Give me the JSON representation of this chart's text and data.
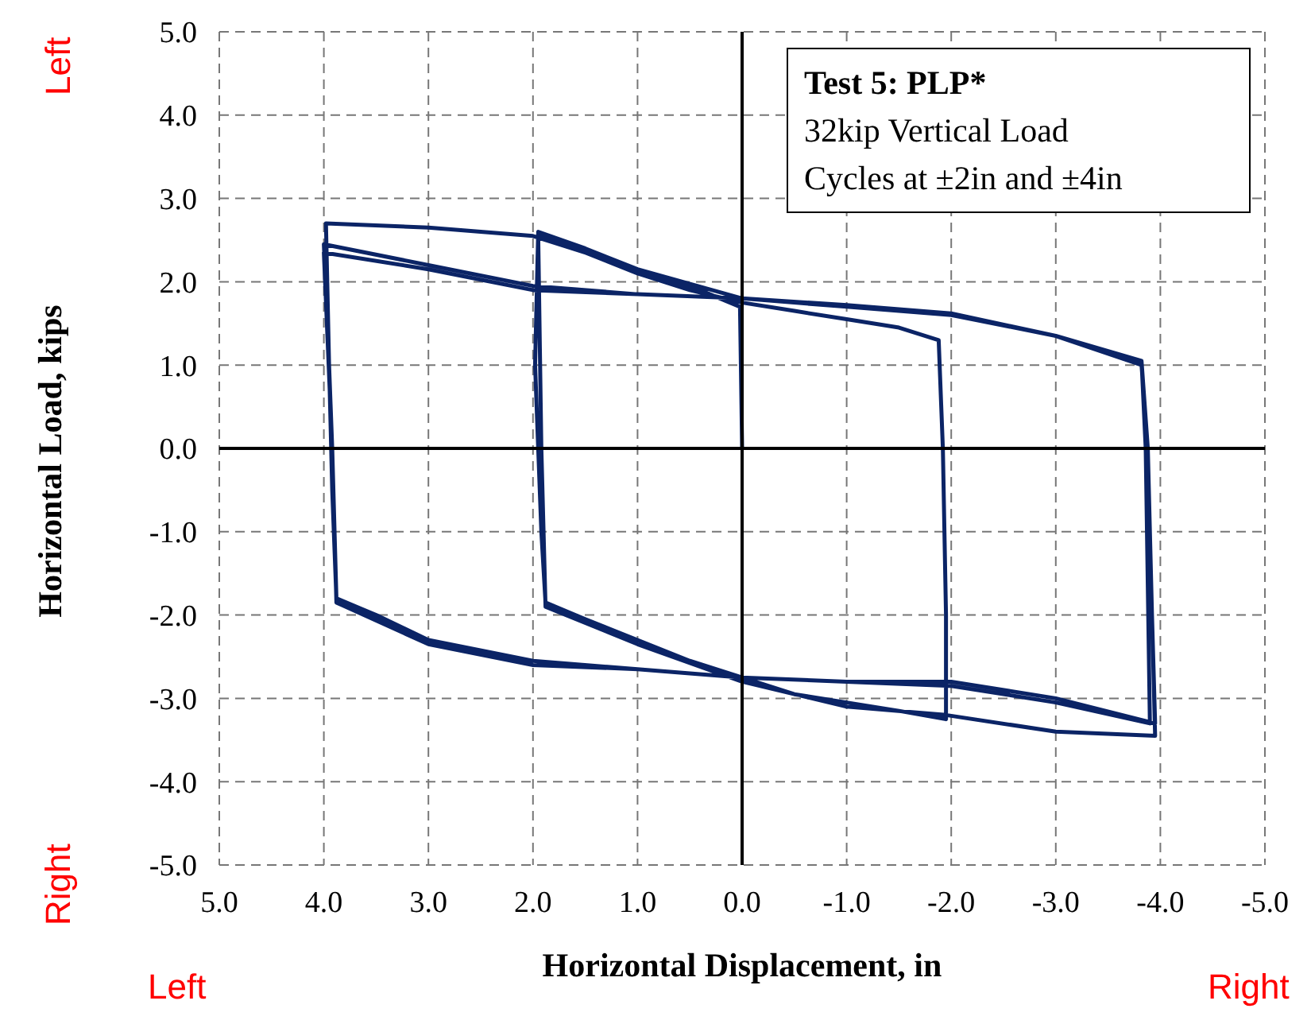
{
  "chart_data": {
    "type": "line",
    "title": "Test 5: PLP*",
    "xlabel": "Horizontal Displacement, in",
    "ylabel": "Horizontal Load, kips",
    "annotations": [
      "32kip Vertical Load",
      "Cycles at ±2in and ±4in",
      "Left",
      "Right",
      "Left",
      "Right"
    ],
    "xlim": [
      5,
      -5
    ],
    "xticks": [
      {
        "value": 5,
        "label": "5.0"
      },
      {
        "value": 4,
        "label": "4.0"
      },
      {
        "value": 3,
        "label": "3.0"
      },
      {
        "value": 2,
        "label": "2.0"
      },
      {
        "value": 1,
        "label": "1.0"
      },
      {
        "value": 0,
        "label": "0.0"
      },
      {
        "value": -1,
        "label": "-1.0"
      },
      {
        "value": -2,
        "label": "-2.0"
      },
      {
        "value": -3,
        "label": "-3.0"
      },
      {
        "value": -4,
        "label": "-4.0"
      },
      {
        "value": -5,
        "label": "-5.0"
      }
    ],
    "ylim": [
      -5,
      5
    ],
    "yticks": [
      {
        "value": 5,
        "label": "5.0"
      },
      {
        "value": 4,
        "label": "4.0"
      },
      {
        "value": 3,
        "label": "3.0"
      },
      {
        "value": 2,
        "label": "2.0"
      },
      {
        "value": 1,
        "label": "1.0"
      },
      {
        "value": 0,
        "label": "0.0"
      },
      {
        "value": -1,
        "label": "-1.0"
      },
      {
        "value": -2,
        "label": "-2.0"
      },
      {
        "value": -3,
        "label": "-3.0"
      },
      {
        "value": -4,
        "label": "-4.0"
      },
      {
        "value": -5,
        "label": "-5.0"
      }
    ],
    "grid": true,
    "marker": "none",
    "line_style": "solid",
    "series": [
      {
        "color": "#0b2466",
        "x": [
          0,
          0.02,
          0.5,
          1,
          1.5,
          1.95,
          1.98,
          1.92,
          1.88,
          1.5,
          1,
          0.5,
          0,
          -0.5,
          -1,
          -1.5,
          -1.95,
          -1.95,
          -1.92,
          -1.88,
          -1.5,
          -1,
          -0.5,
          0,
          0.5,
          1,
          1.5,
          1.95,
          1.92,
          1.88,
          1,
          0,
          -1,
          -1.95,
          -3,
          -3.95,
          -3.92,
          -3.88,
          -3.82,
          -3,
          -2,
          -1,
          0,
          1,
          2,
          3,
          3.98,
          3.95,
          3.92,
          3.88,
          3.5,
          3,
          2,
          1,
          0,
          -1,
          -2,
          -3,
          -3.95,
          -3.92,
          -3.88,
          -3.82,
          -3,
          -2,
          -1,
          0,
          1,
          2,
          3,
          4,
          3.95,
          3.92,
          3.88,
          3.5,
          3,
          2,
          1,
          0,
          -1,
          -2,
          -3,
          -3.9,
          -3.86,
          -3.82,
          -3,
          -2,
          -1,
          0,
          1,
          2,
          3,
          4,
          3.92,
          3.88,
          3,
          2,
          1,
          0
        ],
        "values": [
          0,
          1.7,
          1.95,
          2.15,
          2.4,
          2.6,
          1,
          -1,
          -1.85,
          -2.05,
          -2.3,
          -2.55,
          -2.75,
          -2.95,
          -3.05,
          -3.15,
          -3.25,
          -2,
          0,
          1.3,
          1.45,
          1.55,
          1.65,
          1.75,
          1.9,
          2.1,
          2.35,
          2.55,
          0,
          -1.9,
          -2.35,
          -2.8,
          -3.1,
          -3.2,
          -3.4,
          -3.45,
          -2,
          0,
          1,
          1.35,
          1.62,
          1.72,
          1.8,
          2.15,
          2.55,
          2.65,
          2.7,
          1,
          0,
          -1.8,
          -2.05,
          -2.3,
          -2.6,
          -2.65,
          -2.75,
          -2.8,
          -2.8,
          -3,
          -3.3,
          -2,
          0,
          1.05,
          1.35,
          1.6,
          1.7,
          1.8,
          1.85,
          1.95,
          2.2,
          2.45,
          1,
          -0.5,
          -1.8,
          -2,
          -2.3,
          -2.55,
          -2.65,
          -2.75,
          -2.8,
          -2.85,
          -3.05,
          -3.3,
          0,
          1.05,
          1.35,
          1.6,
          1.7,
          1.8,
          1.85,
          1.9,
          2.15,
          2.35,
          0,
          -1.85,
          -2.35,
          -2.6,
          -2.65,
          -2.75
        ]
      }
    ]
  }
}
